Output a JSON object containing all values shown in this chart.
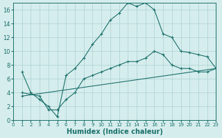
{
  "xlabel": "Humidex (Indice chaleur)",
  "bg_color": "#d6eded",
  "grid_color": "#b2d4d4",
  "line_color": "#1a706a",
  "xlim": [
    0,
    23
  ],
  "ylim": [
    0,
    17
  ],
  "xticks": [
    0,
    1,
    2,
    3,
    4,
    5,
    6,
    7,
    8,
    9,
    10,
    11,
    12,
    13,
    14,
    15,
    16,
    17,
    18,
    19,
    20,
    21,
    22,
    23
  ],
  "yticks": [
    0,
    2,
    4,
    6,
    8,
    10,
    12,
    14,
    16
  ],
  "curve1_x": [
    1,
    2,
    3,
    4,
    5,
    6,
    7,
    8,
    9,
    10,
    11,
    12,
    13,
    14,
    15,
    16,
    17,
    18,
    19,
    20,
    21,
    22,
    23
  ],
  "curve1_y": [
    7,
    4,
    3,
    2,
    0.5,
    6.5,
    7.5,
    9,
    11,
    12.5,
    14.5,
    15.5,
    17,
    16.5,
    17,
    16,
    12.5,
    12,
    10,
    9.8,
    9.5,
    9.2,
    7.5
  ],
  "curve2_x": [
    1,
    3,
    4,
    5,
    6,
    7,
    8,
    9,
    10,
    11,
    12,
    13,
    14,
    15,
    16,
    17,
    18,
    19,
    20,
    21,
    22,
    23
  ],
  "curve2_y": [
    4,
    3.5,
    1.5,
    1.5,
    3,
    4,
    6,
    6.5,
    7,
    7.5,
    8,
    8.5,
    8.5,
    9,
    10,
    9.5,
    8,
    7.5,
    7.5,
    7,
    7,
    7.5
  ],
  "curve3_x": [
    1,
    23
  ],
  "curve3_y": [
    3.5,
    7.5
  ]
}
